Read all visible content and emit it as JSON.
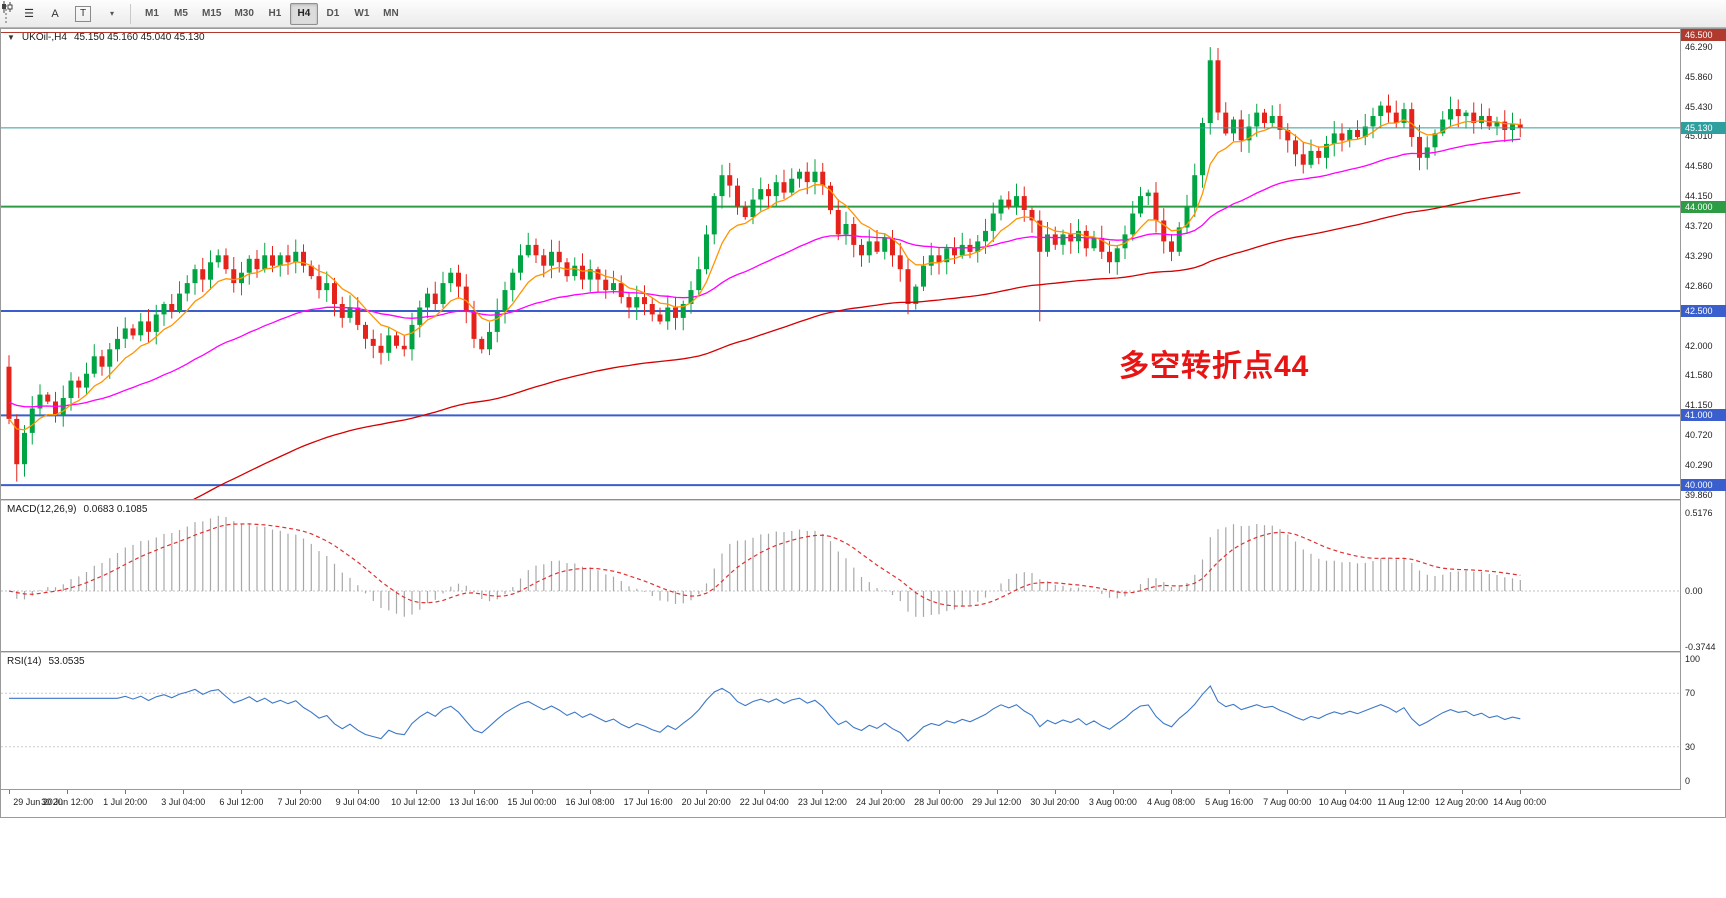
{
  "toolbar": {
    "menu_glyph": "☰",
    "a_label": "A",
    "t_label": "T",
    "caret_glyph": "▾",
    "timeframes": [
      "M1",
      "M5",
      "M15",
      "M30",
      "H1",
      "H4",
      "D1",
      "W1",
      "MN"
    ],
    "selected_timeframe": "H4"
  },
  "main_chart": {
    "collapse_glyph": "▼",
    "title": "UKOil-,H4",
    "ohlc_text": "45.150 45.160 45.040 45.130",
    "annotation": {
      "text": "多空转折点44",
      "color": "#e81414"
    },
    "price_range": {
      "min": 39.8,
      "max": 46.55
    },
    "axis_ticks": [
      "46.290",
      "45.860",
      "45.430",
      "45.010",
      "44.580",
      "44.150",
      "43.720",
      "43.290",
      "42.860",
      "42.000",
      "41.580",
      "41.150",
      "40.720",
      "40.290",
      "39.860"
    ],
    "levels": [
      {
        "value": 46.5,
        "label": "46.500",
        "color": "#b03a2e",
        "width": 1
      },
      {
        "value": 44.0,
        "label": "44.000",
        "color": "#2e9b45",
        "width": 2
      },
      {
        "value": 42.5,
        "label": "42.500",
        "color": "#3a5fcd",
        "width": 2
      },
      {
        "value": 41.0,
        "label": "41.000",
        "color": "#3a5fcd",
        "width": 2
      },
      {
        "value": 40.0,
        "label": "40.000",
        "color": "#3a5fcd",
        "width": 2
      }
    ],
    "price_line": {
      "value": 45.13,
      "label": "45.130",
      "color": "#2f9e9e"
    },
    "colors": {
      "up": "#00a443",
      "down": "#e5231b"
    }
  },
  "macd": {
    "label": "MACD(12,26,9)",
    "values": "0.0683 0.1085",
    "params": {
      "fast": 12,
      "slow": 26,
      "signal": 9
    },
    "axis_ticks": [
      {
        "v": 0.5176,
        "label": "0.5176"
      },
      {
        "v": 0,
        "label": "0.00"
      },
      {
        "v": -0.3744,
        "label": "-0.3744"
      }
    ],
    "range": {
      "min": -0.4,
      "max": 0.6
    },
    "histogram_color": "#a8a8a8",
    "signal_color": "#e03131"
  },
  "rsi": {
    "label": "RSI(14)",
    "value": "53.0535",
    "period": 14,
    "axis_ticks": [
      {
        "v": 100,
        "label": "100"
      },
      {
        "v": 70,
        "label": "70"
      },
      {
        "v": 30,
        "label": "30"
      },
      {
        "v": 0,
        "label": "0"
      }
    ],
    "levels": [
      70,
      30
    ],
    "color": "#3c78c8",
    "range": {
      "min": 0,
      "max": 100
    }
  },
  "time_axis": [
    "29 Jun 2020",
    "30 Jun 12:00",
    "1 Jul 20:00",
    "3 Jul 04:00",
    "6 Jul 12:00",
    "7 Jul 20:00",
    "9 Jul 04:00",
    "10 Jul 12:00",
    "13 Jul 16:00",
    "15 Jul 00:00",
    "16 Jul 08:00",
    "17 Jul 16:00",
    "20 Jul 20:00",
    "22 Jul 04:00",
    "23 Jul 12:00",
    "24 Jul 20:00",
    "28 Jul 00:00",
    "29 Jul 12:00",
    "30 Jul 20:00",
    "3 Aug 00:00",
    "4 Aug 08:00",
    "5 Aug 16:00",
    "7 Aug 00:00",
    "10 Aug 04:00",
    "11 Aug 12:00",
    "12 Aug 20:00",
    "14 Aug 00:00"
  ],
  "chart_data": {
    "type": "candlestick",
    "symbol": "UKOil-",
    "timeframe": "H4",
    "title": "UKOil-,H4 45.150 45.160 45.040 45.130",
    "current_price": 45.13,
    "ohlc_display": {
      "open": "45.150",
      "high": "45.160",
      "low": "45.040",
      "close": "45.130"
    },
    "first_open": 41.7,
    "closes": [
      40.95,
      40.3,
      40.75,
      41.1,
      41.3,
      41.2,
      41.0,
      41.25,
      41.5,
      41.4,
      41.6,
      41.85,
      41.7,
      41.95,
      42.1,
      42.25,
      42.15,
      42.35,
      42.2,
      42.45,
      42.6,
      42.5,
      42.75,
      42.9,
      43.1,
      42.95,
      43.2,
      43.3,
      43.1,
      42.9,
      43.05,
      43.25,
      43.1,
      43.3,
      43.15,
      43.3,
      43.2,
      43.35,
      43.15,
      43.0,
      42.8,
      42.9,
      42.6,
      42.4,
      42.55,
      42.3,
      42.1,
      42.0,
      41.9,
      42.15,
      42.0,
      41.95,
      42.3,
      42.55,
      42.75,
      42.6,
      42.9,
      43.05,
      42.85,
      42.5,
      42.1,
      41.95,
      42.2,
      42.5,
      42.8,
      43.05,
      43.3,
      43.45,
      43.3,
      43.15,
      43.35,
      43.2,
      43.0,
      43.15,
      42.95,
      43.1,
      42.95,
      42.8,
      42.9,
      42.7,
      42.55,
      42.7,
      42.6,
      42.45,
      42.35,
      42.55,
      42.4,
      42.6,
      42.8,
      43.1,
      43.6,
      44.15,
      44.45,
      44.3,
      44.0,
      43.85,
      44.1,
      44.25,
      44.15,
      44.35,
      44.2,
      44.4,
      44.5,
      44.35,
      44.5,
      44.3,
      43.95,
      43.6,
      43.75,
      43.45,
      43.3,
      43.5,
      43.35,
      43.55,
      43.3,
      43.1,
      42.6,
      42.85,
      43.15,
      43.3,
      43.2,
      43.4,
      43.3,
      43.45,
      43.35,
      43.5,
      43.65,
      43.9,
      44.1,
      44.0,
      44.15,
      43.95,
      43.8,
      43.35,
      43.6,
      43.45,
      43.6,
      43.5,
      43.65,
      43.4,
      43.55,
      43.35,
      43.2,
      43.4,
      43.6,
      43.9,
      44.15,
      44.2,
      43.8,
      43.5,
      43.35,
      43.7,
      44.0,
      44.45,
      45.2,
      46.1,
      45.35,
      45.05,
      45.25,
      44.95,
      45.15,
      45.35,
      45.2,
      45.3,
      45.1,
      44.95,
      44.75,
      44.6,
      44.8,
      44.7,
      44.9,
      45.05,
      44.95,
      45.1,
      45.0,
      45.15,
      45.3,
      45.45,
      45.35,
      45.2,
      45.4,
      45.0,
      44.7,
      44.85,
      45.05,
      45.25,
      45.4,
      45.3,
      45.35,
      45.2,
      45.3,
      45.15,
      45.22,
      45.1,
      45.18,
      45.13
    ],
    "wick_overrides": {
      "1": {
        "low": 40.05
      },
      "133": {
        "low": 42.35
      },
      "155": {
        "high": 46.29
      }
    },
    "moving_averages": [
      {
        "name": "ma-fast",
        "period": 8,
        "color": "#ff9500"
      },
      {
        "name": "ma-mid",
        "period": 40,
        "seed": 41.2,
        "color": "#ff00ff"
      },
      {
        "name": "ma-slow",
        "period": 110,
        "seed": 38.6,
        "color": "#d40000"
      }
    ]
  }
}
